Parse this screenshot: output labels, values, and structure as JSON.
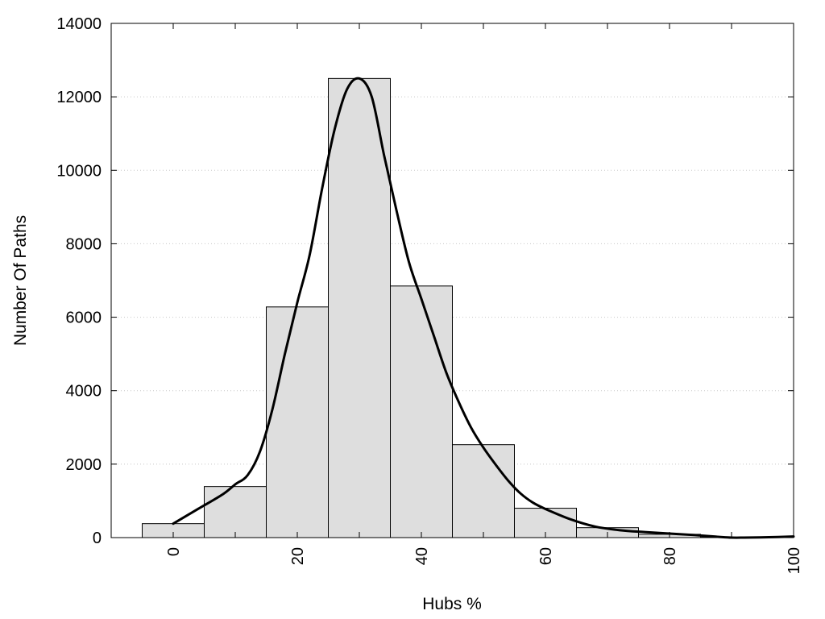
{
  "chart_data": {
    "type": "bar",
    "title": "",
    "xlabel": "Hubs %",
    "ylabel": "Number Of Paths",
    "xlim": [
      -10,
      100
    ],
    "ylim": [
      0,
      14000
    ],
    "x_ticks": [
      0,
      20,
      40,
      60,
      80,
      100
    ],
    "y_ticks": [
      0,
      2000,
      4000,
      6000,
      8000,
      10000,
      12000,
      14000
    ],
    "grid": "horizontal dotted",
    "bin_width": 10,
    "bars": [
      {
        "x": 0,
        "value": 380
      },
      {
        "x": 10,
        "value": 1390
      },
      {
        "x": 20,
        "value": 6280
      },
      {
        "x": 30,
        "value": 12500
      },
      {
        "x": 40,
        "value": 6850
      },
      {
        "x": 50,
        "value": 2530
      },
      {
        "x": 60,
        "value": 800
      },
      {
        "x": 70,
        "value": 270
      },
      {
        "x": 80,
        "value": 90
      },
      {
        "x": 90,
        "value": 10
      }
    ],
    "curve": {
      "x": [
        0,
        4,
        8,
        10,
        12,
        14,
        16,
        18,
        20,
        22,
        24,
        26,
        28,
        30,
        32,
        34,
        36,
        38,
        40,
        42,
        44,
        46,
        48,
        50,
        52,
        54,
        56,
        58,
        60,
        64,
        68,
        72,
        76,
        80,
        84,
        88,
        90,
        92,
        96,
        100
      ],
      "y": [
        380,
        780,
        1180,
        1450,
        1700,
        2350,
        3500,
        5000,
        6400,
        7700,
        9500,
        11100,
        12200,
        12500,
        12000,
        10400,
        8900,
        7500,
        6500,
        5500,
        4500,
        3700,
        3000,
        2450,
        1980,
        1550,
        1200,
        950,
        780,
        500,
        300,
        200,
        150,
        110,
        70,
        20,
        0,
        0,
        10,
        30
      ]
    }
  }
}
